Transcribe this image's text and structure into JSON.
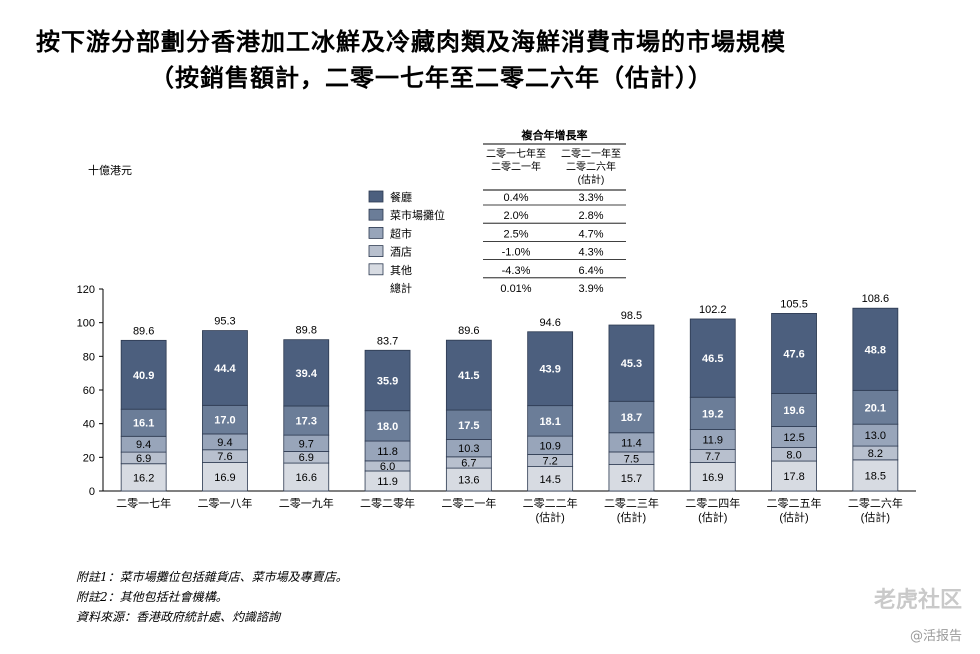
{
  "titles": {
    "line1": "按下游分部劃分香港加工冰鮮及冷藏肉類及海鮮消費市場的市場規模",
    "line2": "（按銷售額計，二零一七年至二零二六年（估計））"
  },
  "chart_data": {
    "type": "bar",
    "stacked": true,
    "ylabel": "十億港元",
    "ylim": [
      0,
      120
    ],
    "yticks": [
      0,
      20,
      40,
      60,
      80,
      100,
      120
    ],
    "categories": [
      [
        "二零一七年"
      ],
      [
        "二零一八年"
      ],
      [
        "二零一九年"
      ],
      [
        "二零二零年"
      ],
      [
        "二零二一年"
      ],
      [
        "二零二二年",
        "(估計)"
      ],
      [
        "二零二三年",
        "(估計)"
      ],
      [
        "二零二四年",
        "(估計)"
      ],
      [
        "二零二五年",
        "(估計)"
      ],
      [
        "二零二六年",
        "(估計)"
      ]
    ],
    "series": [
      {
        "name": "其他",
        "color": "#d7dbe2",
        "label_color": "#000000",
        "values": [
          16.2,
          16.9,
          16.6,
          11.9,
          13.6,
          14.5,
          15.7,
          16.9,
          17.8,
          18.5
        ]
      },
      {
        "name": "酒店",
        "color": "#b8c0ce",
        "label_color": "#000000",
        "values": [
          6.9,
          7.6,
          6.9,
          6.0,
          6.7,
          7.2,
          7.5,
          7.7,
          8.0,
          8.2
        ]
      },
      {
        "name": "超市",
        "color": "#98a5ba",
        "label_color": "#000000",
        "values": [
          9.4,
          9.4,
          9.7,
          11.8,
          10.3,
          10.9,
          11.4,
          11.9,
          12.5,
          13.0
        ]
      },
      {
        "name": "菜市場攤位",
        "color": "#6b7d98",
        "label_color": "#ffffff",
        "values": [
          16.1,
          17.0,
          17.3,
          18.0,
          17.5,
          18.1,
          18.7,
          19.2,
          19.6,
          20.1
        ]
      },
      {
        "name": "餐廳",
        "color": "#4c5f7e",
        "label_color": "#ffffff",
        "values": [
          40.9,
          44.4,
          39.4,
          35.9,
          41.5,
          43.9,
          45.3,
          46.5,
          47.6,
          48.8
        ]
      }
    ],
    "totals": [
      89.6,
      95.3,
      89.8,
      83.7,
      89.6,
      94.6,
      98.5,
      102.2,
      105.5,
      108.6
    ],
    "legend": {
      "placement": "top-center",
      "items": [
        "餐廳",
        "菜市場攤位",
        "超市",
        "酒店",
        "其他"
      ],
      "total_label": "總計"
    },
    "cagr_table": {
      "title": "複合年增長率",
      "col1_header": [
        "二零一七年至",
        "二零二一年"
      ],
      "col2_header": [
        "二零二一年至",
        "二零二六年",
        "(估計)"
      ],
      "rows": [
        [
          "0.4%",
          "3.3%"
        ],
        [
          "2.0%",
          "2.8%"
        ],
        [
          "2.5%",
          "4.7%"
        ],
        [
          "-1.0%",
          "4.3%"
        ],
        [
          "-4.3%",
          "6.4%"
        ],
        [
          "0.01%",
          "3.9%"
        ]
      ]
    }
  },
  "notes": [
    "附註1：菜市場攤位包括雜貨店、菜市場及專賣店。",
    "附註2：其他包括社會機構。",
    "資料來源：香港政府統計處、灼識諮詢"
  ],
  "watermark": {
    "brand": "老虎社区",
    "source": "@活报告"
  }
}
